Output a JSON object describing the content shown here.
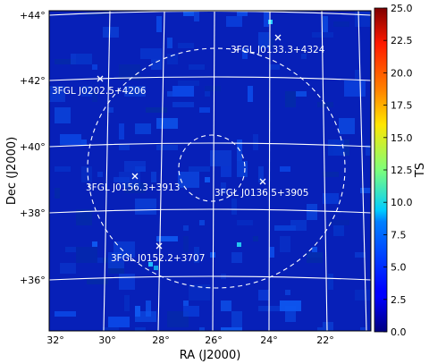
{
  "chart_data": {
    "type": "heatmap",
    "xlabel": "RA (J2000)",
    "ylabel": "Dec (J2000)",
    "x_ticks": [
      "32°",
      "30°",
      "28°",
      "26°",
      "24°",
      "22°"
    ],
    "y_ticks": [
      "+44°",
      "+42°",
      "+40°",
      "+38°",
      "+36°"
    ],
    "colorbar": {
      "label": "TS",
      "min": 0.0,
      "max": 25.0,
      "ticks": [
        "0.0",
        "2.5",
        "5.0",
        "7.5",
        "10.0",
        "12.5",
        "15.0",
        "17.5",
        "20.0",
        "22.5",
        "25.0"
      ],
      "colormap": "jet"
    },
    "grid": true,
    "sources": [
      {
        "name": "3FGL J0133.3+4324",
        "ra": 23.5,
        "dec": 43.3
      },
      {
        "name": "3FGL J0202.5+4206",
        "ra": 30.2,
        "dec": 42.0
      },
      {
        "name": "3FGL J0156.3+3913",
        "ra": 28.9,
        "dec": 39.1
      },
      {
        "name": "3FGL J0136.5+3905",
        "ra": 24.1,
        "dec": 38.9
      },
      {
        "name": "3FGL J0152.2+3707",
        "ra": 28.0,
        "dec": 37.0
      }
    ],
    "circles": [
      {
        "center_ra": 26.0,
        "center_dec": 39.5,
        "radius_deg": 1.0,
        "style": "dashed"
      },
      {
        "center_ra": 26.0,
        "center_dec": 39.5,
        "radius_deg": 3.6,
        "style": "dashed"
      }
    ]
  }
}
